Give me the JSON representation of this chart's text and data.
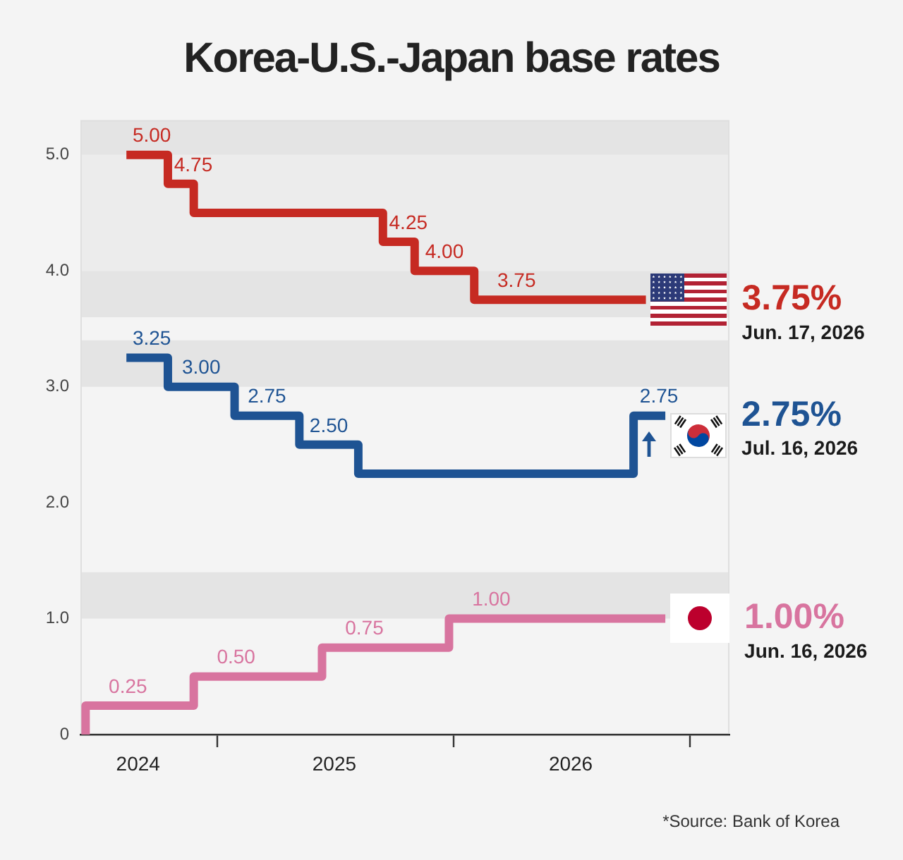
{
  "chart_data": {
    "type": "step",
    "title": "Korea-U.S.-Japan base rates",
    "series": [
      {
        "color": "#c62a22",
        "x": [
          "2024-08-14",
          "2024-10-17",
          "2024-11-26",
          "2025-09-14",
          "2025-11-02",
          "2026-02-02",
          "2026-10-25"
        ],
        "values": [
          5.0,
          4.75,
          4.5,
          4.25,
          4.0,
          3.75,
          3.75
        ],
        "value_labels": [
          "5.00",
          "4.75",
          null,
          "4.25",
          "4.00",
          "3.75",
          null
        ]
      },
      {
        "color": "#1e5393",
        "x": [
          "2024-08-14",
          "2024-10-17",
          "2025-01-28",
          "2025-05-08",
          "2025-08-07",
          "2026-10-06",
          "2026-11-24"
        ],
        "values": [
          3.25,
          3.0,
          2.75,
          2.5,
          2.25,
          2.75,
          2.75
        ],
        "value_labels": [
          "3.25",
          "3.00",
          "2.75",
          "2.50",
          null,
          "2.75",
          null
        ]
      },
      {
        "color": "#d8749f",
        "x": [
          "2024-06-12",
          "2024-06-12",
          "2024-11-26",
          "2025-06-12",
          "2025-12-25",
          "2026-11-24"
        ],
        "values": [
          0,
          0.25,
          0.5,
          0.75,
          1.0,
          1.0
        ],
        "value_labels": [
          null,
          "0.25",
          "0.50",
          "0.75",
          "1.00",
          null
        ]
      }
    ],
    "xlim": [
      "2024-06-04",
      "2027-03-03"
    ],
    "xticks": [
      {
        "value": "2024-09",
        "label": "2024"
      },
      {
        "value": "2025-01-01",
        "label": null
      },
      {
        "value": "2025-07",
        "label": "2025"
      },
      {
        "value": "2026-01-01",
        "label": null
      },
      {
        "value": "2026-07",
        "label": "2026"
      },
      {
        "value": "2027-01-01",
        "label": null
      }
    ],
    "ylim": [
      0,
      5.3
    ],
    "yticks": [
      0,
      {
        "value": 1,
        "label": "1.0"
      },
      {
        "value": 2,
        "label": "2.0"
      },
      {
        "value": 3,
        "label": "3.0"
      },
      {
        "value": 4,
        "label": "4.0"
      },
      {
        "value": 5,
        "label": "5.0"
      }
    ],
    "bands": [
      {
        "axis": "y",
        "from": 5,
        "to": 5.3,
        "color": "#e4e4e4"
      },
      {
        "axis": "y",
        "from": 4,
        "to": 5,
        "color": "#ececec"
      },
      {
        "axis": "y",
        "from": 3.6,
        "to": 4,
        "color": "#e4e4e4"
      },
      {
        "axis": "y",
        "from": 3,
        "to": 3.4,
        "color": "#e4e4e4"
      },
      {
        "axis": "y",
        "from": 1,
        "to": 1.4,
        "color": "#e4e4e4"
      }
    ],
    "annotations": [
      {
        "text": "3.75%",
        "x": "2026-10-25",
        "y": 3.75
      },
      "Jun. 17, 2026",
      {
        "text": "2.75%",
        "x": "2026-11-24",
        "y": 2.75
      },
      "Jul. 16, 2026",
      {
        "text": "1.00%",
        "x": "2026-11-24",
        "y": 1.0
      },
      "Jun. 16, 2026",
      "*Source: Bank of Korea"
    ]
  }
}
